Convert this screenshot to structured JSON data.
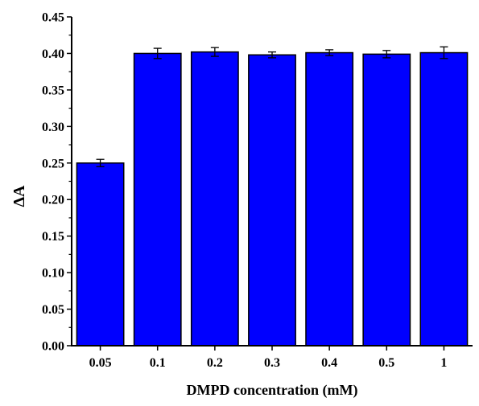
{
  "chart_data": {
    "type": "bar",
    "title": "",
    "xlabel": "DMPD concentration (mM)",
    "ylabel": "ΔA",
    "categories": [
      "0.05",
      "0.1",
      "0.2",
      "0.3",
      "0.4",
      "0.5",
      "1"
    ],
    "values": [
      0.25,
      0.4,
      0.402,
      0.398,
      0.401,
      0.399,
      0.401
    ],
    "errors": [
      0.005,
      0.007,
      0.006,
      0.004,
      0.004,
      0.005,
      0.008
    ],
    "ylim": [
      0,
      0.45
    ],
    "yticks": [
      "0.00",
      "0.05",
      "0.10",
      "0.15",
      "0.20",
      "0.25",
      "0.30",
      "0.35",
      "0.40",
      "0.45"
    ],
    "bar_color": "#0000ff",
    "edge_color": "#000000",
    "grid": false,
    "legend": "none"
  }
}
